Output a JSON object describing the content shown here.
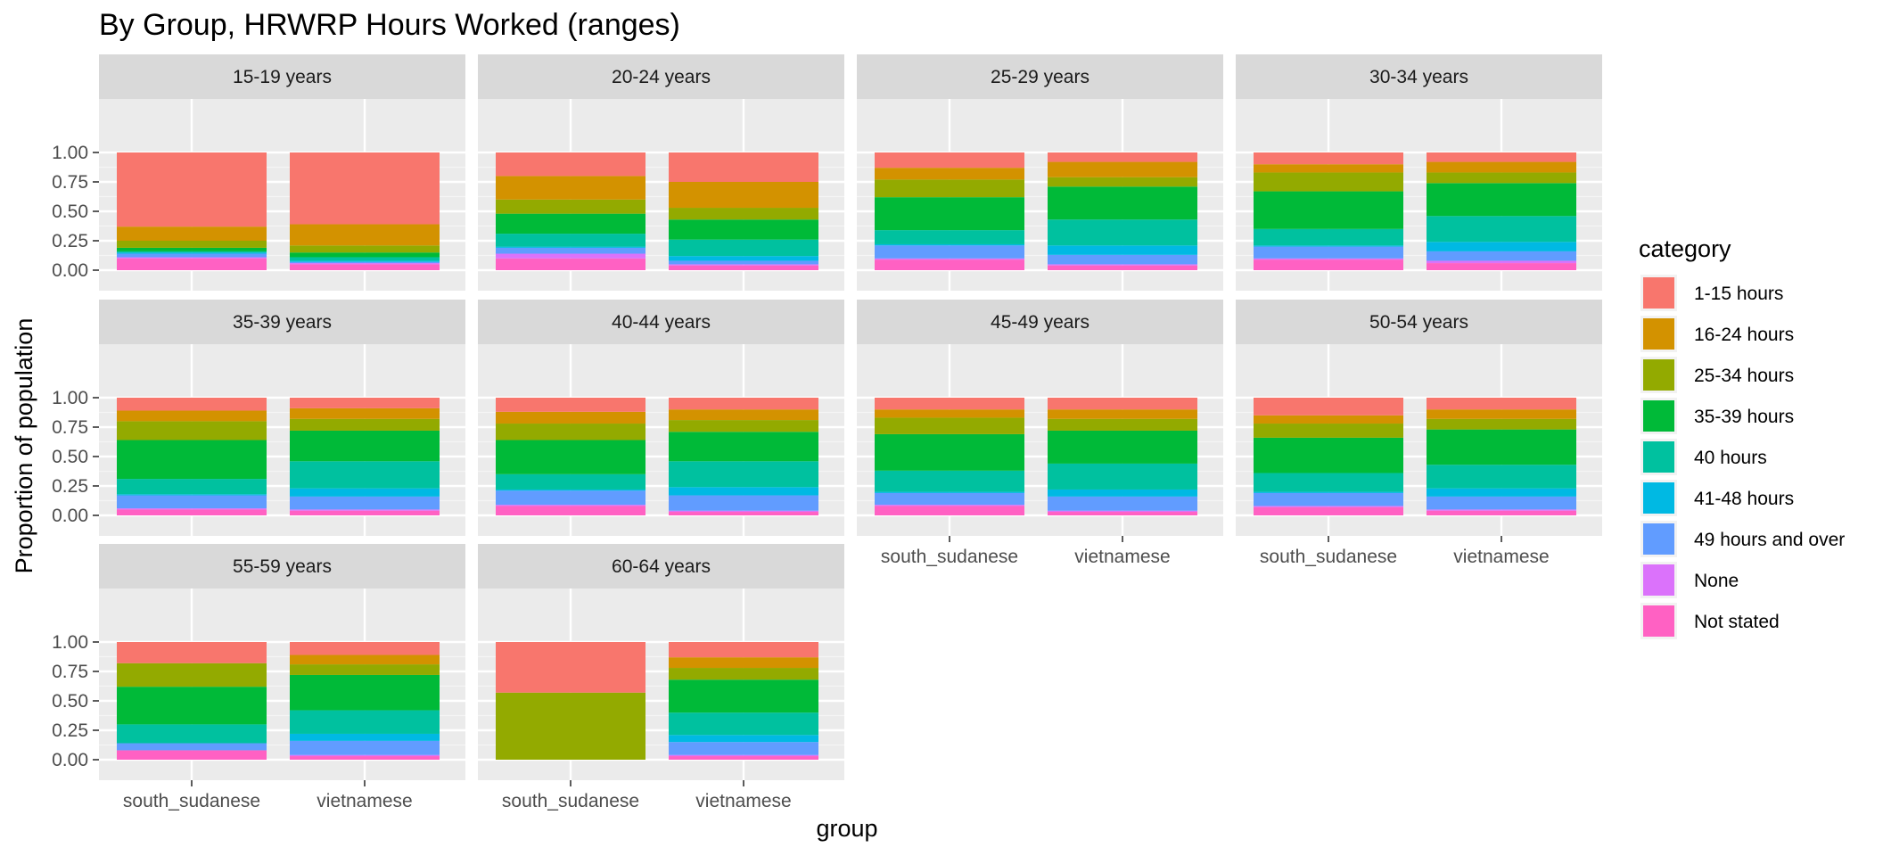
{
  "chart_data": {
    "type": "bar",
    "stacked": true,
    "position": "fill",
    "title": "By Group,  HRWRP Hours Worked (ranges)",
    "xlabel": "group",
    "ylabel": "Proportion of population",
    "ylim": [
      0,
      1
    ],
    "y_ticks": [
      "0.00",
      "0.25",
      "0.50",
      "0.75",
      "1.00"
    ],
    "grid": true,
    "groups": [
      "south_sudanese",
      "vietnamese"
    ],
    "legend": {
      "title": "category",
      "position": "right",
      "items": [
        {
          "label": "1-15 hours",
          "color": "#F8766D"
        },
        {
          "label": "16-24 hours",
          "color": "#D39200"
        },
        {
          "label": "25-34 hours",
          "color": "#93AA00"
        },
        {
          "label": "35-39 hours",
          "color": "#00BA38"
        },
        {
          "label": "40 hours",
          "color": "#00C19F"
        },
        {
          "label": "41-48 hours",
          "color": "#00B9E3"
        },
        {
          "label": "49 hours and over",
          "color": "#619CFF"
        },
        {
          "label": "None",
          "color": "#DB72FB"
        },
        {
          "label": "Not stated",
          "color": "#FF61C3"
        }
      ]
    },
    "panels": [
      {
        "label": "15-19 years",
        "bars": [
          {
            "group": "south_sudanese",
            "values": [
              0.63,
              0.12,
              0.06,
              0.03,
              0.01,
              0.01,
              0.03,
              0.01,
              0.1
            ]
          },
          {
            "group": "vietnamese",
            "values": [
              0.61,
              0.18,
              0.06,
              0.04,
              0.03,
              0.01,
              0.01,
              0.01,
              0.05
            ]
          }
        ]
      },
      {
        "label": "20-24 years",
        "bars": [
          {
            "group": "south_sudanese",
            "values": [
              0.2,
              0.2,
              0.12,
              0.17,
              0.11,
              0.01,
              0.05,
              0.04,
              0.1
            ]
          },
          {
            "group": "vietnamese",
            "values": [
              0.25,
              0.22,
              0.1,
              0.17,
              0.14,
              0.04,
              0.03,
              0.01,
              0.04
            ]
          }
        ]
      },
      {
        "label": "25-29 years",
        "bars": [
          {
            "group": "south_sudanese",
            "values": [
              0.13,
              0.1,
              0.15,
              0.28,
              0.12,
              0.01,
              0.11,
              0.01,
              0.09
            ]
          },
          {
            "group": "vietnamese",
            "values": [
              0.08,
              0.13,
              0.08,
              0.28,
              0.22,
              0.08,
              0.08,
              0.01,
              0.04
            ]
          }
        ]
      },
      {
        "label": "30-34 years",
        "bars": [
          {
            "group": "south_sudanese",
            "values": [
              0.1,
              0.07,
              0.16,
              0.32,
              0.14,
              0.01,
              0.1,
              0.01,
              0.09
            ]
          },
          {
            "group": "vietnamese",
            "values": [
              0.08,
              0.09,
              0.09,
              0.28,
              0.22,
              0.08,
              0.08,
              0.02,
              0.06
            ]
          }
        ]
      },
      {
        "label": "35-39 years",
        "bars": [
          {
            "group": "south_sudanese",
            "values": [
              0.11,
              0.09,
              0.16,
              0.33,
              0.13,
              0.01,
              0.11,
              0.01,
              0.05
            ]
          },
          {
            "group": "vietnamese",
            "values": [
              0.09,
              0.09,
              0.1,
              0.26,
              0.23,
              0.07,
              0.11,
              0.01,
              0.04
            ]
          }
        ]
      },
      {
        "label": "40-44 years",
        "bars": [
          {
            "group": "south_sudanese",
            "values": [
              0.12,
              0.1,
              0.14,
              0.29,
              0.13,
              0.01,
              0.12,
              0.01,
              0.08
            ]
          },
          {
            "group": "vietnamese",
            "values": [
              0.1,
              0.09,
              0.1,
              0.25,
              0.22,
              0.07,
              0.13,
              0.01,
              0.03
            ]
          }
        ]
      },
      {
        "label": "45-49 years",
        "bars": [
          {
            "group": "south_sudanese",
            "values": [
              0.1,
              0.07,
              0.14,
              0.31,
              0.18,
              0.01,
              0.1,
              0.01,
              0.08
            ]
          },
          {
            "group": "vietnamese",
            "values": [
              0.1,
              0.08,
              0.1,
              0.28,
              0.22,
              0.06,
              0.12,
              0.01,
              0.03
            ]
          }
        ]
      },
      {
        "label": "50-54 years",
        "bars": [
          {
            "group": "south_sudanese",
            "values": [
              0.15,
              0.07,
              0.12,
              0.3,
              0.16,
              0.01,
              0.11,
              0.01,
              0.07
            ]
          },
          {
            "group": "vietnamese",
            "values": [
              0.1,
              0.08,
              0.09,
              0.3,
              0.2,
              0.07,
              0.11,
              0.01,
              0.04
            ]
          }
        ]
      },
      {
        "label": "55-59 years",
        "bars": [
          {
            "group": "south_sudanese",
            "values": [
              0.18,
              0.0,
              0.2,
              0.32,
              0.16,
              0.0,
              0.06,
              0.0,
              0.08
            ]
          },
          {
            "group": "vietnamese",
            "values": [
              0.11,
              0.08,
              0.09,
              0.3,
              0.2,
              0.06,
              0.12,
              0.01,
              0.03
            ]
          }
        ]
      },
      {
        "label": "60-64 years",
        "bars": [
          {
            "group": "south_sudanese",
            "values": [
              0.43,
              0.0,
              0.57,
              0.0,
              0.0,
              0.0,
              0.0,
              0.0,
              0.0
            ]
          },
          {
            "group": "vietnamese",
            "values": [
              0.13,
              0.09,
              0.1,
              0.28,
              0.19,
              0.06,
              0.11,
              0.01,
              0.03
            ]
          }
        ]
      }
    ]
  }
}
